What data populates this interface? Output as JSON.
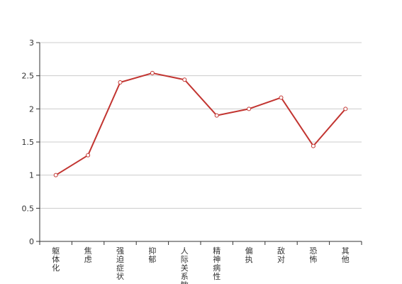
{
  "chart_data": {
    "type": "line",
    "categories": [
      "躯体化",
      "焦虑",
      "强迫症状",
      "抑郁",
      "人际关系敏感",
      "精神病性",
      "偏执",
      "敌对",
      "恐怖",
      "其他"
    ],
    "series": [
      {
        "values": [
          1.0,
          1.3,
          2.4,
          2.54,
          2.44,
          1.9,
          2.0,
          2.17,
          1.44,
          2.0
        ]
      }
    ],
    "y_ticks": [
      "0",
      "0.5",
      "1",
      "1.5",
      "2",
      "2.5",
      "3"
    ],
    "ylim": [
      0,
      3
    ],
    "grid": true,
    "colors": {
      "line": "#c23531",
      "grid": "#cccccc",
      "axis": "#333333"
    }
  }
}
